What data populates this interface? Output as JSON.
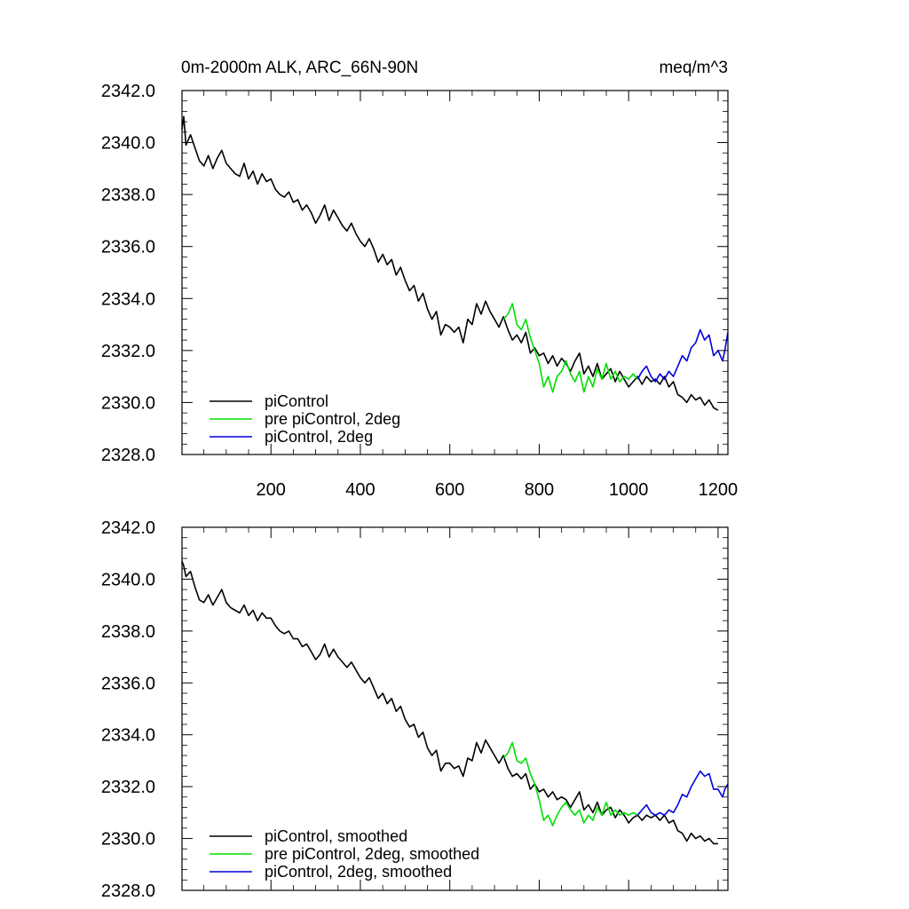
{
  "chart_data": [
    {
      "type": "line",
      "title": "0m-2000m ALK, ARC_66N-90N",
      "units": "meq/m^3",
      "xlim": [
        1,
        1222
      ],
      "ylim": [
        2328.0,
        2342.0
      ],
      "xticks": [
        200,
        400,
        600,
        800,
        1000,
        1200
      ],
      "xtick_labels": [
        "200",
        "400",
        "600",
        "800",
        "1000",
        "1200"
      ],
      "yticks": [
        2328.0,
        2330.0,
        2332.0,
        2334.0,
        2336.0,
        2338.0,
        2340.0,
        2342.0
      ],
      "ytick_labels": [
        "2328.0",
        "2330.0",
        "2332.0",
        "2334.0",
        "2336.0",
        "2338.0",
        "2340.0",
        "2342.0"
      ],
      "legend_position": "bottom-left",
      "grid": false,
      "series": [
        {
          "name": "piControl",
          "color": "#000000",
          "x": [
            1,
            5,
            10,
            20,
            30,
            40,
            50,
            60,
            70,
            80,
            90,
            100,
            110,
            120,
            130,
            140,
            150,
            160,
            170,
            180,
            190,
            200,
            210,
            220,
            230,
            240,
            250,
            260,
            270,
            280,
            290,
            300,
            310,
            320,
            330,
            340,
            350,
            360,
            370,
            380,
            390,
            400,
            410,
            420,
            430,
            440,
            450,
            460,
            470,
            480,
            490,
            500,
            510,
            520,
            530,
            540,
            550,
            560,
            570,
            580,
            590,
            600,
            610,
            620,
            630,
            640,
            650,
            660,
            670,
            680,
            690,
            700,
            710,
            720,
            730,
            740,
            750,
            760,
            770,
            780,
            790,
            800,
            810,
            820,
            830,
            840,
            850,
            860,
            870,
            880,
            890,
            900,
            910,
            920,
            930,
            940,
            950,
            960,
            970,
            980,
            990,
            1000,
            1010,
            1020,
            1030,
            1040,
            1050,
            1060,
            1070,
            1080,
            1090,
            1100,
            1110,
            1120,
            1130,
            1140,
            1150,
            1160,
            1170,
            1180,
            1190,
            1200
          ],
          "y": [
            2340.5,
            2341.0,
            2339.9,
            2340.3,
            2339.8,
            2339.3,
            2339.1,
            2339.5,
            2339.0,
            2339.4,
            2339.7,
            2339.2,
            2339.0,
            2338.8,
            2338.7,
            2339.2,
            2338.6,
            2338.9,
            2338.4,
            2338.8,
            2338.5,
            2338.6,
            2338.2,
            2338.0,
            2337.9,
            2338.1,
            2337.7,
            2337.8,
            2337.4,
            2337.6,
            2337.3,
            2336.9,
            2337.2,
            2337.6,
            2337.0,
            2337.4,
            2337.1,
            2336.8,
            2336.6,
            2336.9,
            2336.5,
            2336.2,
            2336.0,
            2336.3,
            2335.9,
            2335.4,
            2335.7,
            2335.3,
            2335.5,
            2334.9,
            2335.2,
            2334.7,
            2334.3,
            2334.5,
            2333.9,
            2334.2,
            2333.6,
            2333.2,
            2333.5,
            2332.6,
            2333.0,
            2332.9,
            2332.7,
            2332.9,
            2332.3,
            2333.2,
            2333.0,
            2333.8,
            2333.4,
            2333.9,
            2333.5,
            2333.2,
            2332.9,
            2333.3,
            2332.8,
            2332.4,
            2332.6,
            2332.3,
            2332.7,
            2331.9,
            2332.1,
            2331.8,
            2331.9,
            2331.5,
            2331.8,
            2331.4,
            2331.7,
            2331.5,
            2331.2,
            2331.6,
            2331.9,
            2331.1,
            2331.4,
            2331.0,
            2331.5,
            2330.9,
            2331.1,
            2331.3,
            2330.8,
            2331.2,
            2330.9,
            2330.6,
            2330.8,
            2331.0,
            2330.7,
            2331.0,
            2330.8,
            2330.9,
            2330.7,
            2331.0,
            2330.6,
            2330.8,
            2330.3,
            2330.2,
            2330.0,
            2330.3,
            2330.1,
            2330.2,
            2329.9,
            2330.1,
            2329.8,
            2329.7
          ]
        },
        {
          "name": "pre piControl, 2deg",
          "color": "#00dd00",
          "x": [
            720,
            730,
            740,
            750,
            760,
            770,
            780,
            790,
            800,
            810,
            820,
            830,
            840,
            850,
            860,
            870,
            880,
            890,
            900,
            910,
            920,
            930,
            940,
            950,
            960,
            970,
            980,
            990,
            1000,
            1010,
            1020
          ],
          "y": [
            2333.2,
            2333.4,
            2333.8,
            2333.0,
            2332.8,
            2333.2,
            2332.5,
            2332.0,
            2331.5,
            2330.6,
            2331.0,
            2330.4,
            2331.0,
            2331.2,
            2331.6,
            2331.1,
            2330.8,
            2331.2,
            2330.4,
            2331.0,
            2330.6,
            2331.3,
            2330.9,
            2331.5,
            2330.9,
            2331.2,
            2330.8,
            2331.0,
            2330.9,
            2331.1,
            2330.9
          ],
          "smoothed": false
        },
        {
          "name": "piControl, 2deg",
          "color": "#0000dd",
          "x": [
            1020,
            1030,
            1040,
            1050,
            1060,
            1070,
            1080,
            1090,
            1100,
            1110,
            1120,
            1130,
            1140,
            1150,
            1160,
            1170,
            1180,
            1190,
            1200,
            1210,
            1215,
            1222
          ],
          "y": [
            2330.9,
            2331.2,
            2331.4,
            2331.0,
            2330.8,
            2331.1,
            2330.9,
            2331.2,
            2331.0,
            2331.4,
            2331.8,
            2331.6,
            2332.1,
            2332.3,
            2332.8,
            2332.4,
            2332.6,
            2331.8,
            2332.0,
            2331.6,
            2332.0,
            2332.7
          ]
        }
      ]
    },
    {
      "type": "line",
      "title": "",
      "xlim": [
        1,
        1222
      ],
      "ylim": [
        2328.0,
        2342.0
      ],
      "xticks": [
        200,
        400,
        600,
        800,
        1000,
        1200
      ],
      "yticks": [
        2328.0,
        2330.0,
        2332.0,
        2334.0,
        2336.0,
        2338.0,
        2340.0,
        2342.0
      ],
      "ytick_labels": [
        "2328.0",
        "2330.0",
        "2332.0",
        "2334.0",
        "2336.0",
        "2338.0",
        "2340.0",
        "2342.0"
      ],
      "legend_position": "bottom-left",
      "grid": false,
      "series": [
        {
          "name": "piControl, smoothed",
          "color": "#000000",
          "x": [
            1,
            5,
            10,
            20,
            30,
            40,
            50,
            60,
            70,
            80,
            90,
            100,
            110,
            120,
            130,
            140,
            150,
            160,
            170,
            180,
            190,
            200,
            210,
            220,
            230,
            240,
            250,
            260,
            270,
            280,
            290,
            300,
            310,
            320,
            330,
            340,
            350,
            360,
            370,
            380,
            390,
            400,
            410,
            420,
            430,
            440,
            450,
            460,
            470,
            480,
            490,
            500,
            510,
            520,
            530,
            540,
            550,
            560,
            570,
            580,
            590,
            600,
            610,
            620,
            630,
            640,
            650,
            660,
            670,
            680,
            690,
            700,
            710,
            720,
            730,
            740,
            750,
            760,
            770,
            780,
            790,
            800,
            810,
            820,
            830,
            840,
            850,
            860,
            870,
            880,
            890,
            900,
            910,
            920,
            930,
            940,
            950,
            960,
            970,
            980,
            990,
            1000,
            1010,
            1020,
            1030,
            1040,
            1050,
            1060,
            1070,
            1080,
            1090,
            1100,
            1110,
            1120,
            1130,
            1140,
            1150,
            1160,
            1170,
            1180,
            1190,
            1200
          ],
          "y": [
            2340.7,
            2340.5,
            2340.1,
            2340.3,
            2339.7,
            2339.2,
            2339.1,
            2339.4,
            2339.0,
            2339.3,
            2339.6,
            2339.1,
            2338.9,
            2338.8,
            2338.7,
            2339.0,
            2338.6,
            2338.8,
            2338.4,
            2338.7,
            2338.5,
            2338.5,
            2338.2,
            2338.0,
            2337.9,
            2338.0,
            2337.7,
            2337.7,
            2337.4,
            2337.5,
            2337.2,
            2336.9,
            2337.1,
            2337.5,
            2337.0,
            2337.3,
            2337.0,
            2336.8,
            2336.6,
            2336.8,
            2336.5,
            2336.2,
            2336.0,
            2336.2,
            2335.8,
            2335.4,
            2335.6,
            2335.2,
            2335.4,
            2334.9,
            2335.1,
            2334.6,
            2334.3,
            2334.4,
            2333.9,
            2334.1,
            2333.5,
            2333.2,
            2333.4,
            2332.6,
            2332.9,
            2332.9,
            2332.7,
            2332.8,
            2332.4,
            2333.1,
            2333.0,
            2333.7,
            2333.3,
            2333.8,
            2333.5,
            2333.2,
            2332.9,
            2333.2,
            2332.7,
            2332.4,
            2332.5,
            2332.3,
            2332.5,
            2331.9,
            2332.1,
            2331.8,
            2331.9,
            2331.6,
            2331.8,
            2331.5,
            2331.6,
            2331.5,
            2331.2,
            2331.5,
            2331.8,
            2331.1,
            2331.3,
            2331.0,
            2331.4,
            2330.9,
            2331.1,
            2331.2,
            2330.8,
            2331.1,
            2330.9,
            2330.6,
            2330.8,
            2330.9,
            2330.7,
            2330.9,
            2330.8,
            2330.9,
            2330.7,
            2330.9,
            2330.6,
            2330.7,
            2330.3,
            2330.2,
            2329.9,
            2330.2,
            2330.0,
            2330.1,
            2329.9,
            2330.0,
            2329.8,
            2329.8
          ]
        },
        {
          "name": "pre piControl, 2deg, smoothed",
          "color": "#00dd00",
          "x": [
            720,
            730,
            740,
            750,
            760,
            770,
            780,
            790,
            800,
            810,
            820,
            830,
            840,
            850,
            860,
            870,
            880,
            890,
            900,
            910,
            920,
            930,
            940,
            950,
            960,
            970,
            980,
            990,
            1000,
            1010,
            1020
          ],
          "y": [
            2333.1,
            2333.3,
            2333.7,
            2333.0,
            2332.9,
            2333.1,
            2332.5,
            2332.1,
            2331.5,
            2330.7,
            2330.9,
            2330.5,
            2330.9,
            2331.2,
            2331.4,
            2331.1,
            2330.9,
            2331.1,
            2330.6,
            2330.9,
            2330.7,
            2331.2,
            2330.9,
            2331.4,
            2330.9,
            2331.1,
            2330.9,
            2331.0,
            2330.9,
            2331.0,
            2330.9
          ]
        },
        {
          "name": "piControl, 2deg, smoothed",
          "color": "#0000dd",
          "x": [
            1020,
            1030,
            1040,
            1050,
            1060,
            1070,
            1080,
            1090,
            1100,
            1110,
            1120,
            1130,
            1140,
            1150,
            1160,
            1170,
            1180,
            1190,
            1200,
            1210,
            1215,
            1222
          ],
          "y": [
            2330.9,
            2331.1,
            2331.3,
            2331.0,
            2330.9,
            2331.0,
            2330.9,
            2331.1,
            2331.0,
            2331.3,
            2331.7,
            2331.6,
            2332.0,
            2332.3,
            2332.6,
            2332.4,
            2332.5,
            2331.9,
            2331.9,
            2331.6,
            2331.9,
            2332.1
          ]
        }
      ]
    }
  ]
}
